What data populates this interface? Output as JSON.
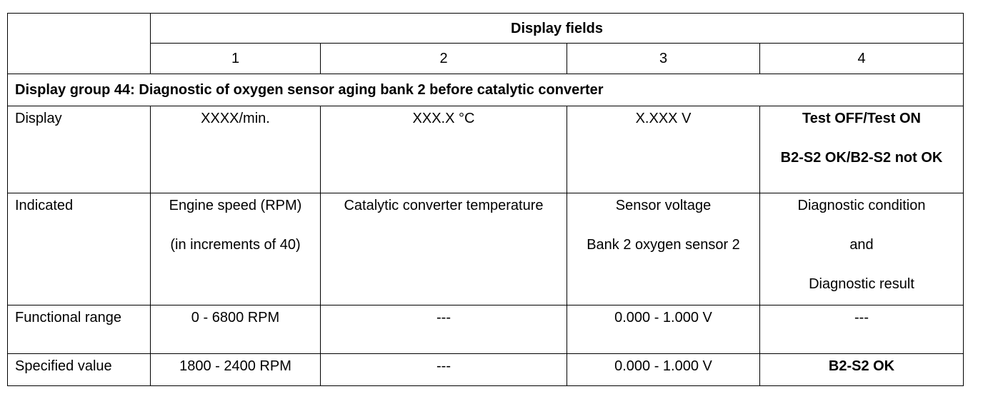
{
  "table": {
    "header": {
      "title": "Display fields",
      "columns": [
        "1",
        "2",
        "3",
        "4"
      ]
    },
    "group": "Display group 44: Diagnostic of oxygen sensor aging bank 2 before catalytic converter",
    "rows": [
      {
        "label": "Display",
        "cells": [
          [
            "XXXX/min."
          ],
          [
            "XXX.X °C"
          ],
          [
            "X.XXX V"
          ],
          [
            "Test OFF/Test ON",
            "B2-S2 OK/B2-S2 not OK"
          ]
        ]
      },
      {
        "label": "Indicated",
        "cells": [
          [
            "Engine speed (RPM)",
            "(in increments of 40)"
          ],
          [
            "Catalytic converter temperature"
          ],
          [
            "Sensor voltage",
            "Bank 2 oxygen sensor 2"
          ],
          [
            "Diagnostic condition",
            "and",
            "Diagnostic result"
          ]
        ]
      },
      {
        "label": "Functional range",
        "cells": [
          [
            "0 - 6800 RPM"
          ],
          [
            "---"
          ],
          [
            "0.000 - 1.000 V"
          ],
          [
            "---"
          ]
        ]
      },
      {
        "label": "Specified value",
        "cells": [
          [
            "1800 - 2400 RPM"
          ],
          [
            "---"
          ],
          [
            "0.000 - 1.000 V"
          ],
          [
            "B2-S2 OK"
          ]
        ]
      }
    ]
  }
}
